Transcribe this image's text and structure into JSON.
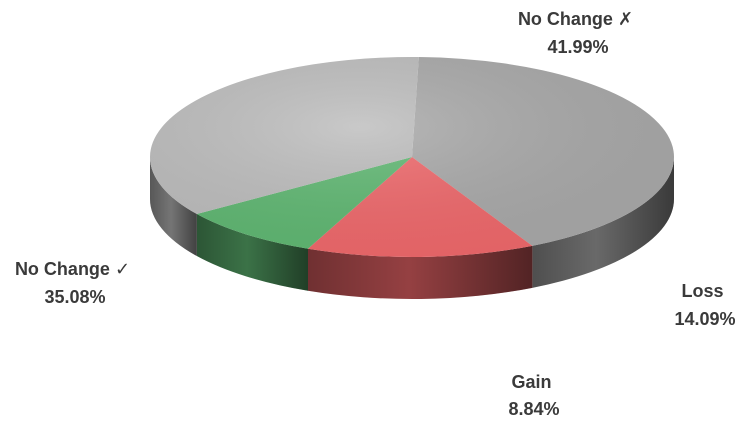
{
  "chart_data": {
    "type": "pie",
    "style": "3d",
    "slices": [
      {
        "label": "No Change ✗",
        "value_label": "41.99%",
        "value": 41.99,
        "color": "#a9a9a9"
      },
      {
        "label": "Loss",
        "value_label": "14.09%",
        "value": 14.09,
        "color": "#f0686b"
      },
      {
        "label": "Gain",
        "value_label": "8.84%",
        "value": 8.84,
        "color": "#5fb872"
      },
      {
        "label": "No Change ✓",
        "value_label": "35.08%",
        "value": 35.08,
        "color": "#bdbdbd"
      }
    ]
  }
}
